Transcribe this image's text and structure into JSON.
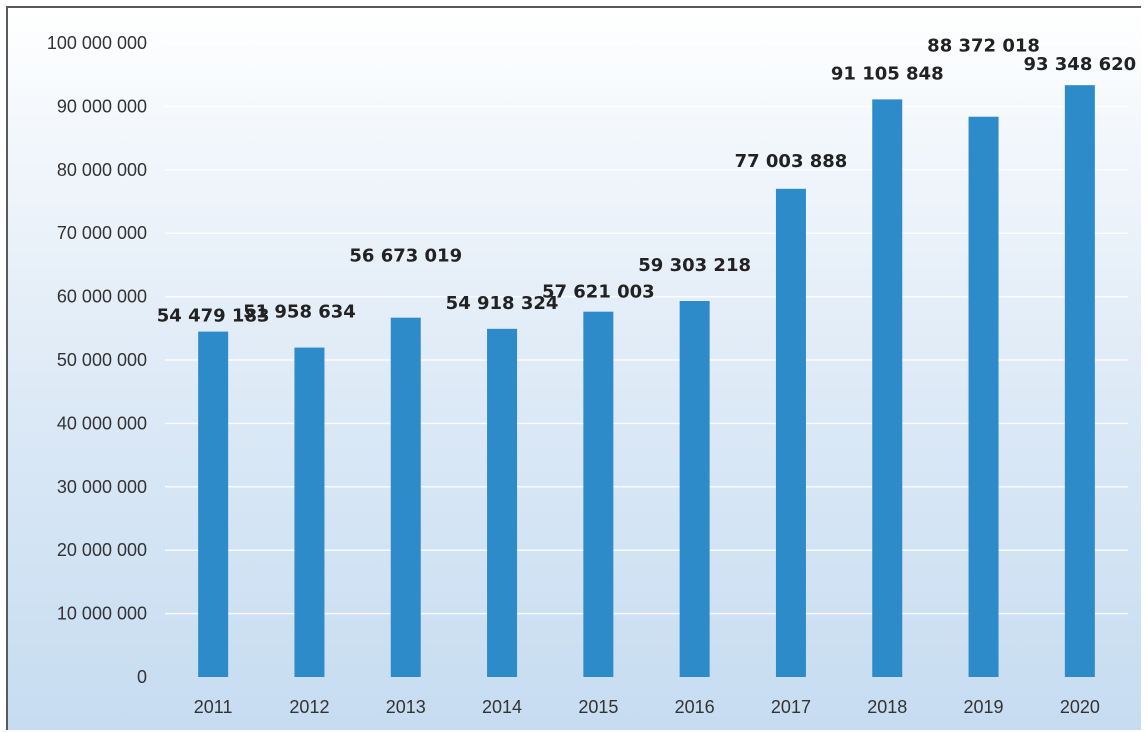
{
  "chart_data": {
    "type": "bar",
    "categories": [
      "2011",
      "2012",
      "2013",
      "2014",
      "2015",
      "2016",
      "2017",
      "2018",
      "2019",
      "2020"
    ],
    "values": [
      54479183,
      51958634,
      56673019,
      54918324,
      57621003,
      59303218,
      77003888,
      91105848,
      88372018,
      93348620
    ],
    "data_labels": [
      "54 479 183",
      "51 958 634",
      "56 673 019",
      "54 918 324",
      "57 621 003",
      "59 303 218",
      "77 003 888",
      "91 105 848",
      "88 372 018",
      "93 348 620"
    ],
    "y_ticks": [
      0,
      10000000,
      20000000,
      30000000,
      40000000,
      50000000,
      60000000,
      70000000,
      80000000,
      90000000,
      100000000
    ],
    "y_tick_labels": [
      "0",
      "10 000 000",
      "20 000 000",
      "30 000 000",
      "40 000 000",
      "50 000 000",
      "60 000 000",
      "70 000 000",
      "80 000 000",
      "90 000 000",
      "100 000 000"
    ],
    "ylim": [
      0,
      100000000
    ],
    "title": "",
    "xlabel": "",
    "ylabel": "",
    "grid": true,
    "legend": "none",
    "bar_color": "#2E8BC9"
  }
}
